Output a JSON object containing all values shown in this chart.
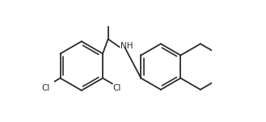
{
  "background": "#ffffff",
  "lc": "#2a2a2a",
  "lw": 1.3,
  "dbo": 0.017,
  "shrink": 0.13,
  "fs": 7.5,
  "figw": 3.29,
  "figh": 1.51,
  "dpi": 100,
  "nh": "NH",
  "cl": "Cl",
  "xlim": [
    0.02,
    0.98
  ],
  "ylim": [
    0.08,
    0.82
  ]
}
